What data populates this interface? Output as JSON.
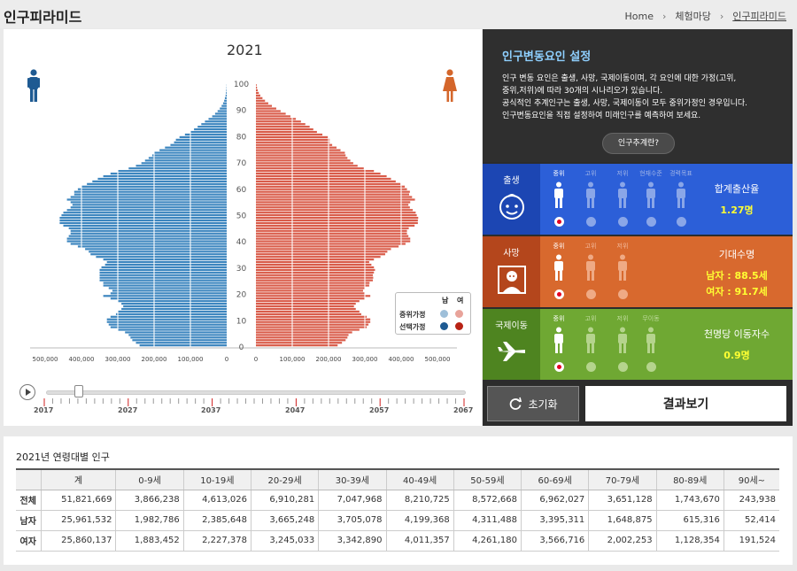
{
  "header": {
    "title": "인구피라미드",
    "breadcrumb": [
      "Home",
      "체험마당",
      "인구피라미드"
    ]
  },
  "chart_data": {
    "type": "bar",
    "title": "2021",
    "subtype": "population-pyramid",
    "age_ticks": [
      0,
      10,
      20,
      30,
      40,
      50,
      60,
      70,
      80,
      90,
      100
    ],
    "male_axis_ticks": [
      "500,000",
      "400,000",
      "300,000",
      "200,000",
      "100,000",
      "0"
    ],
    "female_axis_ticks": [
      "0",
      "100,000",
      "200,000",
      "300,000",
      "400,000",
      "500,000"
    ],
    "xlim": [
      0,
      500000
    ],
    "ylim": [
      0,
      100
    ],
    "series": [
      {
        "name": "남",
        "values": [
          240000,
          250000,
          260000,
          265000,
          270000,
          280000,
          300000,
          320000,
          325000,
          330000,
          330000,
          320000,
          305000,
          300000,
          290000,
          285000,
          290000,
          300000,
          320000,
          340000,
          320000,
          315000,
          325000,
          340000,
          340000,
          350000,
          350000,
          350000,
          350000,
          350000,
          345000,
          335000,
          330000,
          340000,
          360000,
          375000,
          380000,
          390000,
          410000,
          430000,
          440000,
          440000,
          435000,
          430000,
          430000,
          435000,
          450000,
          460000,
          460000,
          460000,
          455000,
          450000,
          440000,
          430000,
          425000,
          430000,
          440000,
          430000,
          420000,
          420000,
          410000,
          400000,
          385000,
          370000,
          355000,
          340000,
          320000,
          300000,
          270000,
          250000,
          235000,
          225000,
          215000,
          205000,
          200000,
          185000,
          170000,
          155000,
          145000,
          140000,
          130000,
          115000,
          100000,
          90000,
          80000,
          70000,
          60000,
          50000,
          40000,
          32000,
          25000,
          19000,
          14000,
          10000,
          7000,
          5000,
          3000,
          2000,
          1200,
          700,
          400
        ]
      },
      {
        "name": "여",
        "values": [
          225000,
          237000,
          247000,
          252000,
          255000,
          265000,
          285000,
          305000,
          310000,
          315000,
          315000,
          305000,
          290000,
          285000,
          275000,
          270000,
          275000,
          285000,
          300000,
          315000,
          300000,
          295000,
          300000,
          312000,
          313000,
          322000,
          323000,
          322000,
          325000,
          328000,
          325000,
          318000,
          312000,
          325000,
          343000,
          356000,
          362000,
          372000,
          393000,
          412000,
          425000,
          425000,
          420000,
          416000,
          416000,
          421000,
          437000,
          446000,
          446000,
          447000,
          443000,
          440000,
          432000,
          424000,
          420000,
          425000,
          438000,
          430000,
          422000,
          424000,
          416000,
          410000,
          398000,
          385000,
          372000,
          360000,
          343000,
          325000,
          297000,
          280000,
          268000,
          260000,
          252000,
          247000,
          245000,
          233000,
          222000,
          210000,
          203000,
          203000,
          198000,
          183000,
          168000,
          158000,
          148000,
          136000,
          124000,
          110000,
          95000,
          82000,
          68000,
          56000,
          44000,
          34000,
          25000,
          18000,
          12000,
          8000,
          5000,
          3000,
          1800
        ]
      }
    ],
    "legend": {
      "headers": [
        "남",
        "여"
      ],
      "rows": [
        {
          "label": "중위가정",
          "male_color": "#9ebfd9",
          "female_color": "#e8a39a"
        },
        {
          "label": "선택가정",
          "male_color": "#1e5a92",
          "female_color": "#b82215"
        }
      ]
    },
    "colors": {
      "male": "#3d86bf",
      "female": "#d95c4a"
    }
  },
  "timeline": {
    "years": [
      "2017",
      "2027",
      "2037",
      "2047",
      "2057",
      "2067"
    ],
    "current": "2021"
  },
  "panel": {
    "title": "인구변동요인 설정",
    "desc": [
      "인구 변동 요인은 출생, 사망, 국제이동이며, 각 요인에 대한 가정(고위,",
      "중위,저위)에 따라 30개의 시나리오가 있습니다.",
      "공식적인 추계인구는 출생, 사망, 국제이동이 모두 중위가정인 경우입니다.",
      "인구변동요인을 직접 설정하여 미래인구를 예측하여 보세요."
    ],
    "proj_button": "인구추계란?",
    "factors": [
      {
        "name": "출생",
        "options": [
          "중위",
          "고위",
          "저위",
          "현재수준",
          "경력목표"
        ],
        "selected": 0,
        "result_label": "합계출산율",
        "result_value": "1.27명",
        "color": "#1d4fc4",
        "icon": "baby-icon"
      },
      {
        "name": "사망",
        "options": [
          "중위",
          "고위",
          "저위"
        ],
        "selected": 0,
        "result_label": "기대수명",
        "result_values": [
          "남자 : 88.5세",
          "여자 : 91.7세"
        ],
        "color": "#c9552a",
        "icon": "elder-icon"
      },
      {
        "name": "국제이동",
        "options": [
          "중위",
          "고위",
          "저위",
          "무이동"
        ],
        "selected": 0,
        "result_label": "천명당 이동자수",
        "result_value": "0.9명",
        "color": "#5f9a2b",
        "icon": "airplane-icon"
      }
    ],
    "reset": "초기화",
    "view_result": "결과보기"
  },
  "table": {
    "title": "2021년 연령대별 인구",
    "headers": [
      "",
      "계",
      "0-9세",
      "10-19세",
      "20-29세",
      "30-39세",
      "40-49세",
      "50-59세",
      "60-69세",
      "70-79세",
      "80-89세",
      "90세~"
    ],
    "rows": [
      [
        "전체",
        "51,821,669",
        "3,866,238",
        "4,613,026",
        "6,910,281",
        "7,047,968",
        "8,210,725",
        "8,572,668",
        "6,962,027",
        "3,651,128",
        "1,743,670",
        "243,938"
      ],
      [
        "남자",
        "25,961,532",
        "1,982,786",
        "2,385,648",
        "3,665,248",
        "3,705,078",
        "4,199,368",
        "4,311,488",
        "3,395,311",
        "1,648,875",
        "615,316",
        "52,414"
      ],
      [
        "여자",
        "25,860,137",
        "1,883,452",
        "2,227,378",
        "3,245,033",
        "3,342,890",
        "4,011,357",
        "4,261,180",
        "3,566,716",
        "2,002,253",
        "1,128,354",
        "191,524"
      ]
    ]
  }
}
